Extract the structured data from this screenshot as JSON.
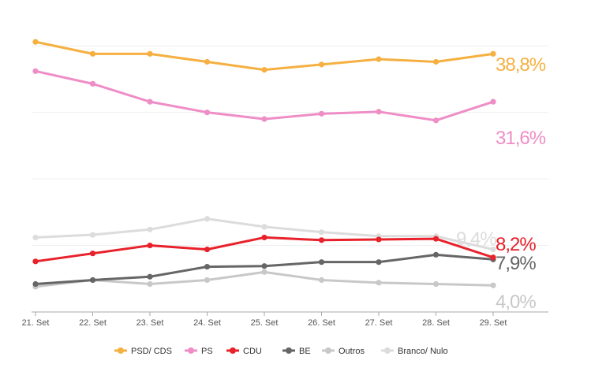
{
  "chart_data": {
    "type": "line",
    "categories": [
      "21. Set",
      "22. Set",
      "23. Set",
      "24. Set",
      "25. Set",
      "26. Set",
      "27. Set",
      "28. Set",
      "29. Set"
    ],
    "ylim": [
      0,
      45
    ],
    "grid": true,
    "legend_position": "bottom",
    "series": [
      {
        "name": "PSD/ CDS",
        "color": "#f5b041",
        "values": [
          40.6,
          38.8,
          38.8,
          37.6,
          36.4,
          37.2,
          38.0,
          37.6,
          38.8
        ],
        "end_label": "38,8%"
      },
      {
        "name": "PS",
        "color": "#ee8dc6",
        "values": [
          36.2,
          34.3,
          31.6,
          30.0,
          29.0,
          29.8,
          30.1,
          28.8,
          31.6
        ],
        "end_label": "31,6%"
      },
      {
        "name": "CDU",
        "color": "#e8212b",
        "values": [
          7.6,
          8.8,
          10.0,
          9.4,
          11.2,
          10.8,
          10.9,
          11.0,
          8.2
        ],
        "end_label": "8,2%"
      },
      {
        "name": "BE",
        "color": "#666666",
        "values": [
          4.2,
          4.8,
          5.3,
          6.8,
          6.9,
          7.5,
          7.5,
          8.6,
          7.9
        ],
        "end_label": "7,9%"
      },
      {
        "name": "Outros",
        "color": "#c8c8c8",
        "values": [
          3.8,
          4.8,
          4.2,
          4.8,
          6.0,
          4.8,
          4.4,
          4.2,
          4.0
        ],
        "end_label": "4,0%"
      },
      {
        "name": "Branco/ Nulo",
        "color": "#dcdcdc",
        "values": [
          11.2,
          11.6,
          12.4,
          14.0,
          12.8,
          12.0,
          11.4,
          11.4,
          9.4
        ],
        "end_label": "9,4%"
      }
    ]
  }
}
